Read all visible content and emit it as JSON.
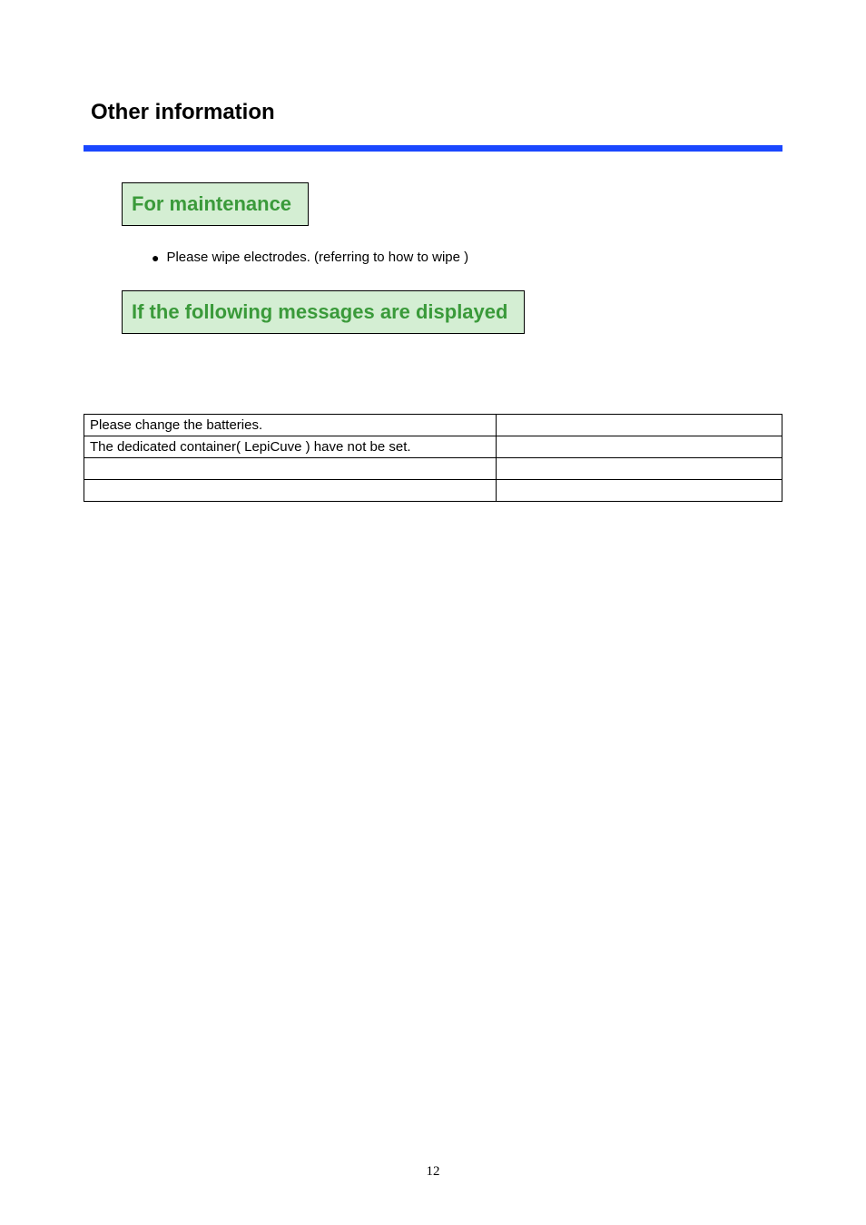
{
  "title": "Other information",
  "blue_bar_color": "#1a47ff",
  "box_bg": "#d4eed3",
  "box_text_color": "#3a9a3a",
  "section1": {
    "heading": "For maintenance",
    "bullet": "●",
    "bullet_text": "Please wipe electrodes. (referring to how to wipe )"
  },
  "section2": {
    "heading": "If the following messages are displayed"
  },
  "table": {
    "rows": [
      [
        "Please change the batteries.",
        ""
      ],
      [
        "The dedicated container( LepiCuve ) have not  be set.",
        ""
      ],
      [
        "",
        ""
      ],
      [
        "",
        ""
      ]
    ]
  },
  "page_number": "12"
}
